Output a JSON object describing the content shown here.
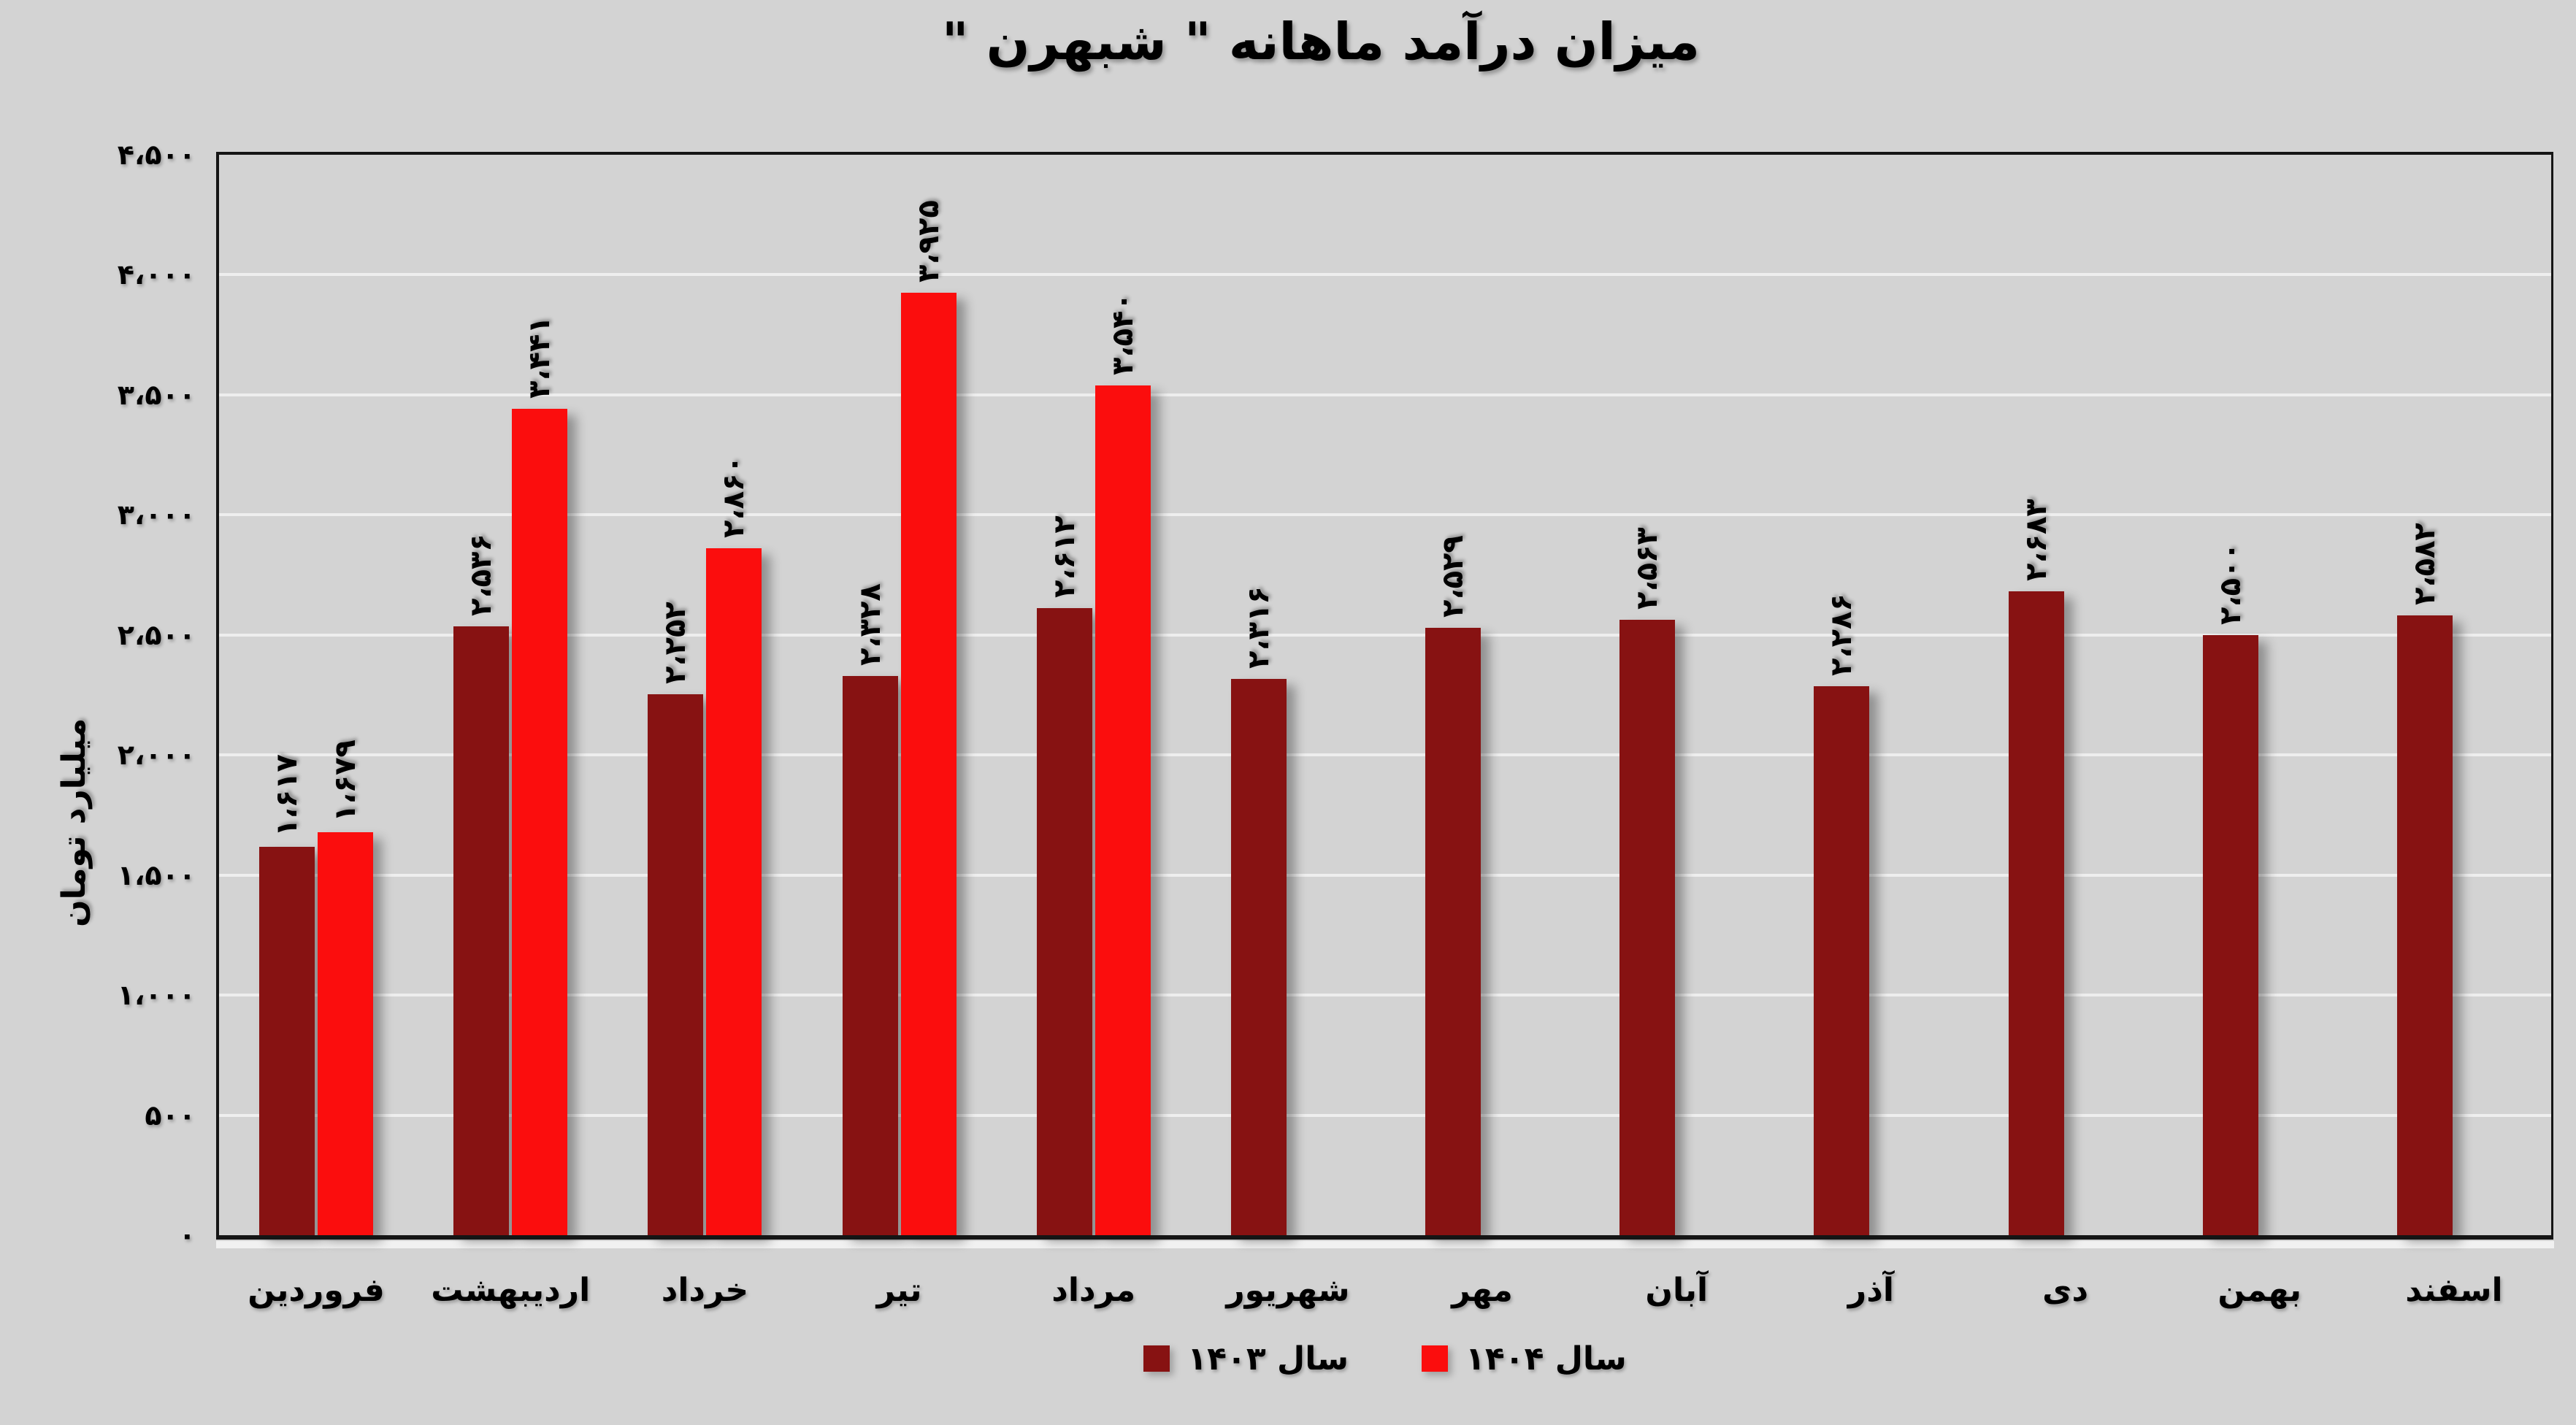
{
  "chart_data": {
    "type": "bar",
    "title": "میزان درآمد ماهانه \" شبهرن \"",
    "xlabel": "",
    "ylabel": "میلیارد تومان",
    "ylim": [
      0,
      4500
    ],
    "ytick_step": 500,
    "yticks_fa": [
      "۰",
      "۵۰۰",
      "۱،۰۰۰",
      "۱،۵۰۰",
      "۲،۰۰۰",
      "۲،۵۰۰",
      "۳،۰۰۰",
      "۳،۵۰۰",
      "۴،۰۰۰",
      "۴،۵۰۰"
    ],
    "grid": "horizontal",
    "legend_position": "bottom",
    "categories": [
      "فروردین",
      "اردیبهشت",
      "خرداد",
      "تیر",
      "مرداد",
      "شهریور",
      "مهر",
      "آبان",
      "آذر",
      "دی",
      "بهمن",
      "اسفند"
    ],
    "series": [
      {
        "name": "سال ۱۴۰۳",
        "color": "#871212",
        "values": [
          1617,
          2536,
          2252,
          2328,
          2612,
          2316,
          2529,
          2563,
          2286,
          2683,
          2500,
          2582
        ],
        "labels_fa": [
          "۱،۶۱۷",
          "۲،۵۳۶",
          "۲،۲۵۲",
          "۲،۳۲۸",
          "۲،۶۱۲",
          "۲،۳۱۶",
          "۲،۵۲۹",
          "۲،۵۶۳",
          "۲،۲۸۶",
          "۲،۶۸۳",
          "۲،۵۰۰",
          "۲،۵۸۲"
        ]
      },
      {
        "name": "سال ۱۴۰۴",
        "color": "#FB0D0D",
        "values": [
          1679,
          3441,
          2860,
          3925,
          3540,
          null,
          null,
          null,
          null,
          null,
          null,
          null
        ],
        "labels_fa": [
          "۱،۶۷۹",
          "۳،۴۴۱",
          "۲،۸۶۰",
          "۳،۹۲۵",
          "۳،۵۴۰",
          null,
          null,
          null,
          null,
          null,
          null,
          null
        ]
      }
    ],
    "colors": {
      "background": "#D3D3D3",
      "gridline": "#EEEEEE",
      "axis": "#151515",
      "series_1403": "#871212",
      "series_1404": "#FB0D0D"
    }
  }
}
